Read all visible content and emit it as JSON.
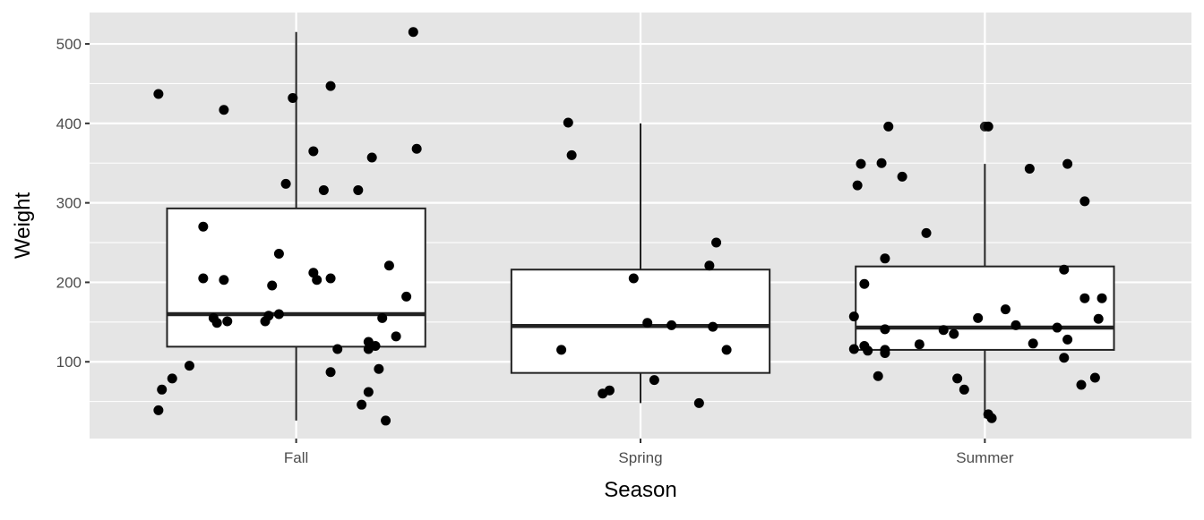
{
  "chart_data": {
    "type": "boxplot",
    "title": "",
    "xlabel": "Season",
    "ylabel": "Weight",
    "categories": [
      "Fall",
      "Spring",
      "Summer"
    ],
    "ylim": [
      3.4,
      539.5
    ],
    "xlim": [
      0.4,
      3.6
    ],
    "yticks": [
      100,
      200,
      300,
      400,
      500
    ],
    "ytick_labels": [
      "100",
      "200",
      "300",
      "400",
      "500"
    ],
    "grid": true,
    "colors": {
      "panel": "#e5e5e5",
      "grid": "#ffffff",
      "point": "#000000",
      "box_fill": "#ffffff",
      "box_line": "#222222",
      "text": "#4d4d4d",
      "title": "#000000"
    },
    "boxes": [
      {
        "category": "Fall",
        "whisker_low": 26,
        "q1": 119,
        "median": 160,
        "q3": 293,
        "whisker_high": 515
      },
      {
        "category": "Spring",
        "whisker_low": 48,
        "q1": 86,
        "median": 145,
        "q3": 216,
        "whisker_high": 400
      },
      {
        "category": "Summer",
        "whisker_low": 29,
        "q1": 115,
        "median": 143,
        "q3": 220,
        "whisker_high": 349,
        "outliers": [
          396
        ]
      }
    ],
    "points": [
      {
        "category": "Fall",
        "jitter": [
          -0.4,
          -0.39,
          -0.36,
          -0.4,
          -0.31,
          -0.21,
          -0.27,
          -0.27,
          -0.21,
          -0.24,
          -0.23,
          -0.2,
          -0.01,
          0.1,
          0.34,
          0.35,
          0.05,
          -0.03,
          0.08,
          0.18,
          0.22,
          -0.05,
          -0.07,
          -0.09,
          -0.08,
          -0.05,
          0.05,
          0.06,
          0.1,
          0.27,
          0.32,
          0.25,
          0.29,
          0.12,
          0.21,
          0.21,
          0.23,
          0.1,
          0.24,
          0.21,
          0.19,
          0.26
        ],
        "values": [
          437,
          65,
          79,
          39,
          95,
          417,
          270,
          205,
          203,
          155,
          149,
          151,
          432,
          447,
          515,
          368,
          365,
          324,
          316,
          316,
          357,
          236,
          196,
          151,
          158,
          160,
          212,
          203,
          205,
          221,
          182,
          155,
          132,
          116,
          125,
          116,
          120,
          87,
          91,
          62,
          46,
          26
        ]
      },
      {
        "category": "Spring",
        "jitter": [
          -0.21,
          -0.2,
          -0.23,
          -0.11,
          -0.09,
          -0.02,
          0.02,
          0.09,
          0.04,
          0.17,
          0.22,
          0.2,
          0.21,
          0.25
        ],
        "values": [
          401,
          360,
          115,
          60,
          64,
          205,
          149,
          146,
          77,
          48,
          250,
          221,
          144,
          115
        ]
      },
      {
        "category": "Summer",
        "jitter": [
          -0.37,
          -0.36,
          -0.3,
          -0.28,
          -0.24,
          -0.35,
          -0.29,
          -0.38,
          -0.38,
          -0.35,
          -0.34,
          -0.29,
          -0.29,
          -0.29,
          -0.31,
          -0.19,
          -0.17,
          -0.12,
          -0.09,
          -0.02,
          -0.08,
          -0.06,
          0.01,
          0.01,
          0.02,
          0.06,
          0.09,
          0.14,
          0.13,
          0.24,
          0.29,
          0.23,
          0.21,
          0.24,
          0.23,
          0.28,
          0.32,
          0.29,
          0.34,
          0.33
        ],
        "values": [
          322,
          349,
          350,
          396,
          333,
          198,
          230,
          157,
          116,
          120,
          114,
          141,
          111,
          115,
          82,
          122,
          262,
          140,
          135,
          155,
          79,
          65,
          396,
          34,
          29,
          166,
          146,
          123,
          343,
          349,
          302,
          216,
          143,
          128,
          105,
          71,
          80,
          180,
          180,
          154
        ]
      }
    ]
  }
}
